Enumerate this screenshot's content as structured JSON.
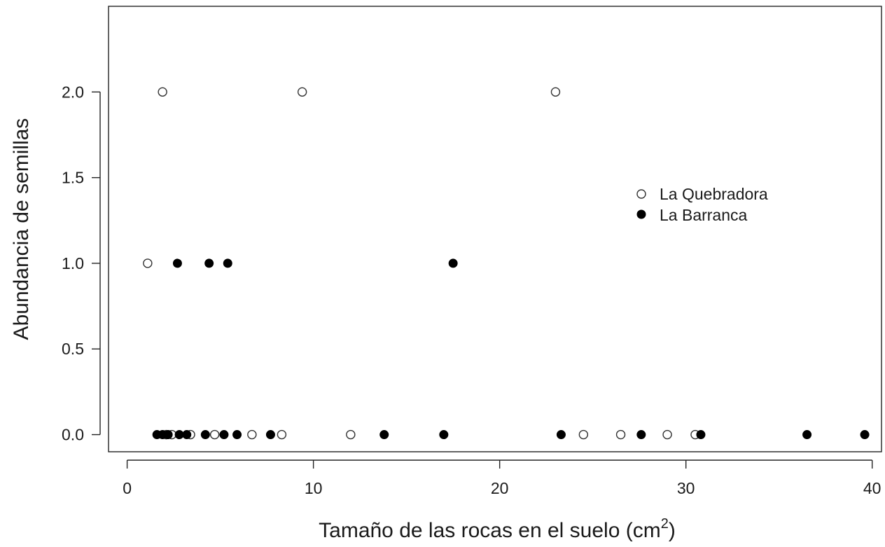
{
  "chart_data": {
    "type": "scatter",
    "xlabel": "Tamaño de las rocas en el suelo (cm",
    "xlabel_superscript": "2",
    "xlabel_suffix": ")",
    "ylabel": "Abundancia de semillas",
    "xlim": [
      -1,
      40.5
    ],
    "ylim": [
      -0.1,
      2.5
    ],
    "x_ticks": [
      0,
      10,
      20,
      30,
      40
    ],
    "x_tick_labels": [
      "0",
      "10",
      "20",
      "30",
      "40"
    ],
    "y_ticks": [
      0,
      0.5,
      1,
      1.5,
      2
    ],
    "y_tick_labels": [
      "0.0",
      "0.5",
      "1.0",
      "1.5",
      "2.0"
    ],
    "grid": false,
    "legend_position": "right",
    "series": [
      {
        "name": "La Quebradora",
        "marker": "open-circle",
        "points": [
          {
            "x": 1.9,
            "y": 2
          },
          {
            "x": 9.4,
            "y": 2
          },
          {
            "x": 23.0,
            "y": 2
          },
          {
            "x": 1.1,
            "y": 1
          },
          {
            "x": 2.1,
            "y": 0
          },
          {
            "x": 2.4,
            "y": 0
          },
          {
            "x": 3.4,
            "y": 0
          },
          {
            "x": 4.7,
            "y": 0
          },
          {
            "x": 6.7,
            "y": 0
          },
          {
            "x": 8.3,
            "y": 0
          },
          {
            "x": 12.0,
            "y": 0
          },
          {
            "x": 24.5,
            "y": 0
          },
          {
            "x": 26.5,
            "y": 0
          },
          {
            "x": 29.0,
            "y": 0
          },
          {
            "x": 30.5,
            "y": 0
          }
        ]
      },
      {
        "name": "La Barranca",
        "marker": "filled-circle",
        "points": [
          {
            "x": 2.7,
            "y": 1
          },
          {
            "x": 4.4,
            "y": 1
          },
          {
            "x": 5.4,
            "y": 1
          },
          {
            "x": 17.5,
            "y": 1
          },
          {
            "x": 1.6,
            "y": 0
          },
          {
            "x": 1.9,
            "y": 0
          },
          {
            "x": 2.2,
            "y": 0
          },
          {
            "x": 2.8,
            "y": 0
          },
          {
            "x": 3.2,
            "y": 0
          },
          {
            "x": 4.2,
            "y": 0
          },
          {
            "x": 5.2,
            "y": 0
          },
          {
            "x": 5.9,
            "y": 0
          },
          {
            "x": 7.7,
            "y": 0
          },
          {
            "x": 13.8,
            "y": 0
          },
          {
            "x": 17.0,
            "y": 0
          },
          {
            "x": 23.3,
            "y": 0
          },
          {
            "x": 27.6,
            "y": 0
          },
          {
            "x": 30.8,
            "y": 0
          },
          {
            "x": 36.5,
            "y": 0
          },
          {
            "x": 39.6,
            "y": 0
          }
        ]
      }
    ]
  }
}
